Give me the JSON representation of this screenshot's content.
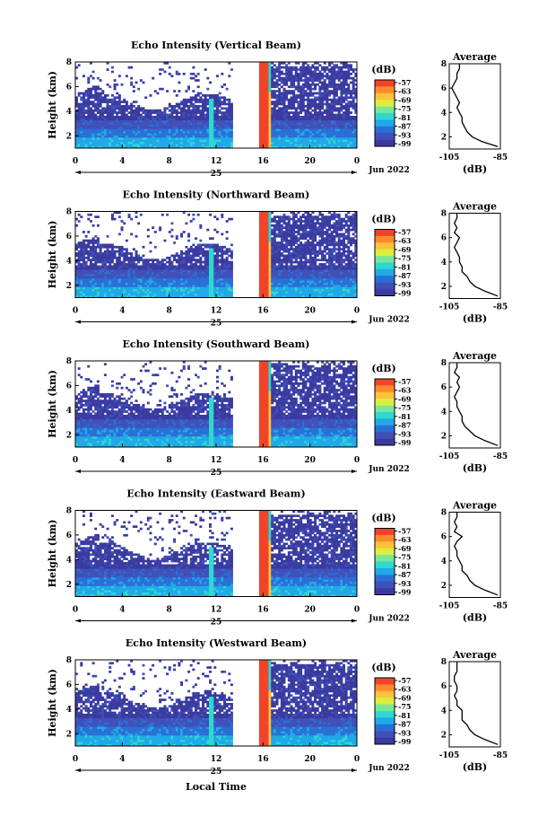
{
  "figure": {
    "xlabel": "Local Time",
    "date_label": "25",
    "month_year_label": "Jun 2022",
    "colorbar_unit": "(dB)",
    "average_title": "Average",
    "average_xlabel": "(dB)",
    "ylabel": "Height (km)"
  },
  "colormap": [
    "#3a3aa0",
    "#4050b8",
    "#2a6fd6",
    "#21a8e8",
    "#2ed8d0",
    "#7ae69a",
    "#dcef3f",
    "#ffc23a",
    "#ff8a2c",
    "#f0442a"
  ],
  "chart_data": [
    {
      "type": "heatmap",
      "title": "Echo Intensity (Vertical Beam)",
      "xlabel": "Local Time",
      "ylabel": "Height (km)",
      "xlim": [
        0,
        24
      ],
      "ylim": [
        1,
        8
      ],
      "xticks": [
        "0",
        "4",
        "8",
        "12",
        "16",
        "20",
        "0"
      ],
      "yticks": [
        "2",
        "4",
        "6",
        "8"
      ],
      "colorbar": {
        "label": "(dB)",
        "ticks": [
          "-57",
          "-63",
          "-69",
          "-75",
          "-81",
          "-87",
          "-93",
          "-99"
        ],
        "range": [
          -99,
          -57
        ]
      },
      "gap_hours": [
        13.5,
        15.6
      ],
      "average_profile": {
        "title": "Average",
        "xlabel": "(dB)",
        "xlim": [
          -105,
          -85
        ],
        "xticks": [
          "-105",
          "-85"
        ],
        "height": [
          1.2,
          1.6,
          2.0,
          2.4,
          2.8,
          3.2,
          3.6,
          4.0,
          4.4,
          4.8,
          5.2,
          5.6,
          6.0,
          6.4,
          6.8,
          7.2,
          7.6,
          8.0
        ],
        "db": [
          -86,
          -92,
          -96,
          -98,
          -99,
          -100,
          -100,
          -101,
          -102,
          -101,
          -102,
          -103,
          -104,
          -103,
          -102,
          -102,
          -101,
          -101
        ]
      }
    },
    {
      "type": "heatmap",
      "title": "Echo Intensity (Northward Beam)",
      "xlabel": "Local Time",
      "ylabel": "Height (km)",
      "xlim": [
        0,
        24
      ],
      "ylim": [
        1,
        8
      ],
      "xticks": [
        "0",
        "4",
        "8",
        "12",
        "16",
        "20",
        "0"
      ],
      "yticks": [
        "2",
        "4",
        "6",
        "8"
      ],
      "colorbar": {
        "label": "(dB)",
        "ticks": [
          "-57",
          "-63",
          "-69",
          "-75",
          "-81",
          "-87",
          "-93",
          "-99"
        ],
        "range": [
          -99,
          -57
        ]
      },
      "gap_hours": [
        13.5,
        15.6
      ],
      "average_profile": {
        "title": "Average",
        "xlabel": "(dB)",
        "xlim": [
          -105,
          -85
        ],
        "xticks": [
          "-105",
          "-85"
        ],
        "height": [
          1.2,
          1.6,
          2.0,
          2.4,
          2.8,
          3.2,
          3.6,
          4.0,
          4.4,
          4.8,
          5.2,
          5.6,
          6.0,
          6.4,
          6.8,
          7.2,
          7.6,
          8.0
        ],
        "db": [
          -86,
          -91,
          -95,
          -97,
          -98,
          -100,
          -100,
          -101,
          -101,
          -102,
          -103,
          -102,
          -101,
          -103,
          -102,
          -103,
          -102,
          -102
        ]
      }
    },
    {
      "type": "heatmap",
      "title": "Echo Intensity (Southward Beam)",
      "xlabel": "Local Time",
      "ylabel": "Height (km)",
      "xlim": [
        0,
        24
      ],
      "ylim": [
        1,
        8
      ],
      "xticks": [
        "0",
        "4",
        "8",
        "12",
        "16",
        "20",
        "0"
      ],
      "yticks": [
        "2",
        "4",
        "6",
        "8"
      ],
      "colorbar": {
        "label": "(dB)",
        "ticks": [
          "-57",
          "-63",
          "-69",
          "-75",
          "-81",
          "-87",
          "-93",
          "-99"
        ],
        "range": [
          -99,
          -57
        ]
      },
      "gap_hours": [
        13.5,
        15.6
      ],
      "average_profile": {
        "title": "Average",
        "xlabel": "(dB)",
        "xlim": [
          -105,
          -85
        ],
        "xticks": [
          "-105",
          "-85"
        ],
        "height": [
          1.2,
          1.6,
          2.0,
          2.4,
          2.8,
          3.2,
          3.6,
          4.0,
          4.4,
          4.8,
          5.2,
          5.6,
          6.0,
          6.4,
          6.8,
          7.2,
          7.6,
          8.0
        ],
        "db": [
          -86,
          -91,
          -95,
          -97,
          -99,
          -100,
          -100,
          -101,
          -102,
          -102,
          -103,
          -102,
          -101,
          -102,
          -101,
          -103,
          -102,
          -102
        ]
      }
    },
    {
      "type": "heatmap",
      "title": "Echo Intensity (Eastward Beam)",
      "xlabel": "Local Time",
      "ylabel": "Height (km)",
      "xlim": [
        0,
        24
      ],
      "ylim": [
        1,
        8
      ],
      "xticks": [
        "0",
        "4",
        "8",
        "12",
        "16",
        "20",
        "0"
      ],
      "yticks": [
        "2",
        "4",
        "6",
        "8"
      ],
      "colorbar": {
        "label": "(dB)",
        "ticks": [
          "-57",
          "-63",
          "-69",
          "-75",
          "-81",
          "-87",
          "-93",
          "-99"
        ],
        "range": [
          -99,
          -57
        ]
      },
      "gap_hours": [
        13.5,
        15.6
      ],
      "average_profile": {
        "title": "Average",
        "xlabel": "(dB)",
        "xlim": [
          -105,
          -85
        ],
        "xticks": [
          "-105",
          "-85"
        ],
        "height": [
          1.2,
          1.6,
          2.0,
          2.4,
          2.8,
          3.2,
          3.6,
          4.0,
          4.4,
          4.8,
          5.2,
          5.6,
          6.0,
          6.4,
          6.8,
          7.2,
          7.6,
          8.0
        ],
        "db": [
          -86,
          -91,
          -95,
          -97,
          -98,
          -100,
          -100,
          -101,
          -102,
          -102,
          -103,
          -102,
          -100,
          -103,
          -102,
          -103,
          -102,
          -102
        ]
      }
    },
    {
      "type": "heatmap",
      "title": "Echo Intensity (Westward Beam)",
      "xlabel": "Local Time",
      "ylabel": "Height (km)",
      "xlim": [
        0,
        24
      ],
      "ylim": [
        1,
        8
      ],
      "xticks": [
        "0",
        "4",
        "8",
        "12",
        "16",
        "20",
        "0"
      ],
      "yticks": [
        "2",
        "4",
        "6",
        "8"
      ],
      "colorbar": {
        "label": "(dB)",
        "ticks": [
          "-57",
          "-63",
          "-69",
          "-75",
          "-81",
          "-87",
          "-93",
          "-99"
        ],
        "range": [
          -99,
          -57
        ]
      },
      "gap_hours": [
        13.5,
        15.6
      ],
      "average_profile": {
        "title": "Average",
        "xlabel": "(dB)",
        "xlim": [
          -105,
          -85
        ],
        "xticks": [
          "-105",
          "-85"
        ],
        "height": [
          1.2,
          1.6,
          2.0,
          2.4,
          2.8,
          3.2,
          3.6,
          4.0,
          4.4,
          4.8,
          5.2,
          5.6,
          6.0,
          6.4,
          6.8,
          7.2,
          7.6,
          8.0
        ],
        "db": [
          -86,
          -91,
          -95,
          -97,
          -98,
          -100,
          -100,
          -100,
          -102,
          -102,
          -103,
          -102,
          -102,
          -103,
          -103,
          -102,
          -102,
          -102
        ]
      }
    }
  ]
}
